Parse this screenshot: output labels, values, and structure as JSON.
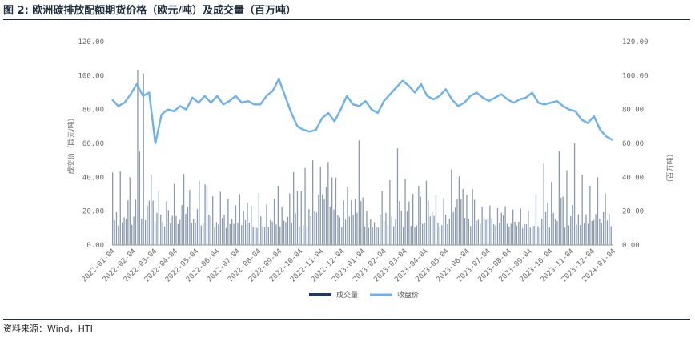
{
  "header": {
    "title": "图 2: 欧洲碳排放配额期货价格（欧元/吨）及成交量（百万吨）"
  },
  "footer": {
    "source": "资料来源：Wind，HTI"
  },
  "colors": {
    "volume": "#8a9bb0",
    "price": "#6cb1f0",
    "legend_volume": "#1f3a5f",
    "axis": "#9a9a9a",
    "text": "#1f2d3d"
  },
  "chart_data": {
    "type": "bar+line",
    "title": "欧洲碳排放配额期货价格（欧元/吨）及成交量（百万吨）",
    "left_axis": {
      "label": "成交价（欧元/吨）",
      "ylim": [
        0,
        120
      ],
      "ticks": [
        "0.00",
        "20.00",
        "40.00",
        "60.00",
        "80.00",
        "100.00",
        "120.00"
      ]
    },
    "right_axis": {
      "label": "（百万吨）",
      "ylim": [
        0,
        120
      ],
      "ticks": [
        "0.00",
        "20.00",
        "40.00",
        "60.00",
        "80.00",
        "100.00",
        "120.00"
      ]
    },
    "x_ticks": [
      "2022-01-04",
      "2022-02-04",
      "2022-03-04",
      "2022-04-04",
      "2022-05-04",
      "2022-06-04",
      "2022-07-04",
      "2022-08-04",
      "2022-09-04",
      "2022-10-04",
      "2022-11-04",
      "2022-12-04",
      "2023-01-04",
      "2023-02-04",
      "2023-03-04",
      "2023-04-04",
      "2023-05-04",
      "2023-06-04",
      "2023-07-04",
      "2023-08-04",
      "2023-09-04",
      "2023-10-04",
      "2023-11-04",
      "2023-12-04",
      "2024-01-04"
    ],
    "grid": false,
    "legend": {
      "position": "bottom",
      "items": [
        "成交量",
        "收盘价"
      ]
    },
    "series": [
      {
        "name": "收盘价",
        "kind": "line",
        "axis": "left",
        "monthly_values": [
          86,
          82,
          84,
          89,
          95,
          88,
          90,
          60,
          77,
          80,
          79,
          82,
          80,
          87,
          84,
          88,
          84,
          88,
          83,
          85,
          88,
          84,
          85,
          83,
          83,
          88,
          91,
          98,
          88,
          78,
          70,
          68,
          67,
          68,
          75,
          78,
          73,
          80,
          88,
          83,
          82,
          85,
          80,
          78,
          85,
          89,
          93,
          97,
          94,
          90,
          95,
          88,
          86,
          88,
          92,
          86,
          82,
          84,
          88,
          90,
          87,
          85,
          87,
          89,
          86,
          84,
          86,
          87,
          90,
          84,
          83,
          84,
          85,
          82,
          80,
          79,
          74,
          72,
          76,
          68,
          64,
          62
        ]
      },
      {
        "name": "成交量",
        "kind": "bar",
        "axis": "right",
        "monthly_peak": [
          52,
          33,
          40,
          103,
          62,
          48,
          37,
          40,
          38,
          42,
          30,
          38,
          35,
          36,
          33,
          28,
          30,
          25,
          33,
          30,
          42,
          35,
          34,
          43,
          63,
          52,
          58,
          64,
          40,
          32,
          34,
          62,
          28,
          20,
          38,
          40,
          75,
          50,
          40,
          35,
          38,
          32,
          33,
          46,
          62,
          36,
          33,
          30,
          30,
          35,
          28,
          30,
          27,
          24,
          30,
          48,
          44,
          66,
          68,
          60,
          63,
          35,
          40,
          36
        ]
      }
    ]
  }
}
